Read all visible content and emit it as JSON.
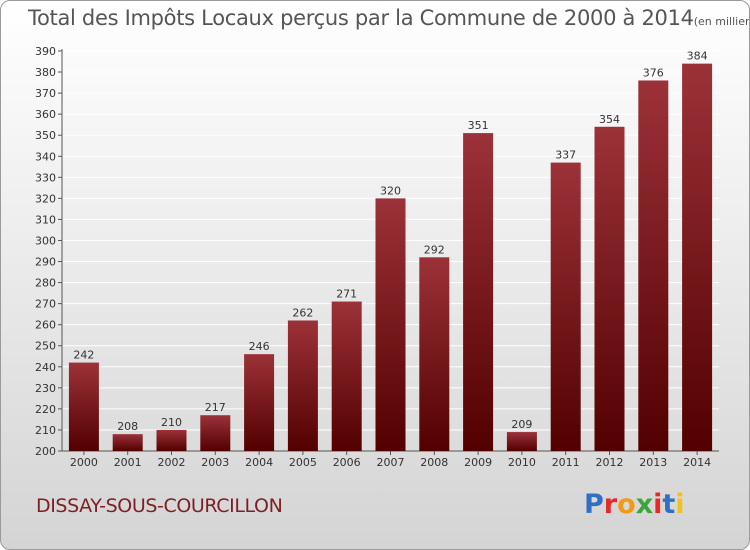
{
  "title": "Total des Impôts Locaux perçus par la Commune de 2000 à 2014",
  "unit_note": "(en milliers d'€)",
  "commune": "DISSAY-SOUS-COURCILLON",
  "logo": {
    "text": "Proxiti",
    "letters": [
      {
        "ch": "P",
        "color": "#2f6fc6"
      },
      {
        "ch": "r",
        "color": "#e8292b"
      },
      {
        "ch": "o",
        "color": "#f29a16"
      },
      {
        "ch": "x",
        "color": "#3aa63a"
      },
      {
        "ch": "i",
        "color": "#e8292b"
      },
      {
        "ch": "t",
        "color": "#2f6fc6"
      },
      {
        "ch": "i",
        "color": "#f2c316"
      }
    ]
  },
  "colors": {
    "bar_top": "#9c3239",
    "bar_bottom": "#520000",
    "grid": "#ffffff",
    "axis": "#555555",
    "text": "#333333",
    "commune": "#7d1f25"
  },
  "chart_data": {
    "type": "bar",
    "title": "Total des Impôts Locaux perçus par la Commune de 2000 à 2014",
    "xlabel": "",
    "ylabel": "",
    "ylim": [
      200,
      390
    ],
    "ytick_step": 10,
    "grid": true,
    "categories": [
      "2000",
      "2001",
      "2002",
      "2003",
      "2004",
      "2005",
      "2006",
      "2007",
      "2008",
      "2009",
      "2010",
      "2011",
      "2012",
      "2013",
      "2014"
    ],
    "values": [
      242,
      208,
      210,
      217,
      246,
      262,
      271,
      320,
      292,
      351,
      209,
      337,
      354,
      376,
      384
    ]
  }
}
